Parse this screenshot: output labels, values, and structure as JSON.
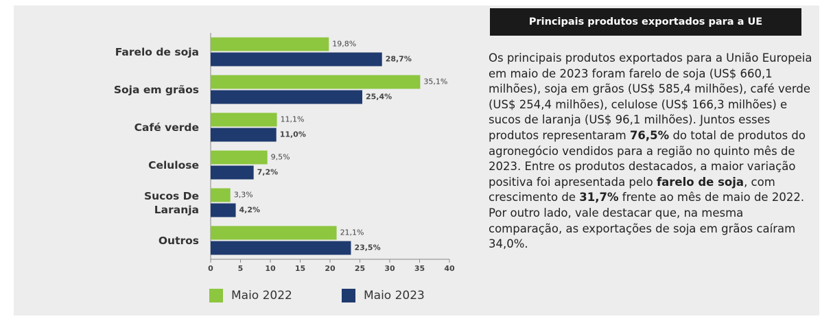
{
  "chart_data": {
    "type": "hbar",
    "categories": [
      "Farelo de soja",
      "Soja em grãos",
      "Café verde",
      "Celulose",
      "Sucos De Laranja",
      "Outros"
    ],
    "series": [
      {
        "name": "Maio 2022",
        "color": "#8dc63f",
        "values": [
          19.8,
          35.1,
          11.1,
          9.5,
          3.3,
          21.1
        ],
        "value_labels": [
          "19,8%",
          "35,1%",
          "11,1%",
          "9,5%",
          "3,3%",
          "21,1%"
        ]
      },
      {
        "name": "Maio 2023",
        "color": "#1f3a6e",
        "values": [
          28.7,
          25.4,
          11.0,
          7.2,
          4.2,
          23.5
        ],
        "value_labels": [
          "28,7%",
          "25,4%",
          "11,0%",
          "7,2%",
          "4,2%",
          "23,5%"
        ]
      }
    ],
    "xlim": [
      0,
      40
    ],
    "xticks": [
      0,
      5,
      10,
      15,
      20,
      25,
      30,
      35,
      40
    ],
    "grid": false,
    "legend": "bottom"
  },
  "panel": {
    "title": "Principais produtos exportados para a UE",
    "paragraph": [
      {
        "text": "Os principais produtos exportados para a União Europeia em maio de 2023 foram farelo de soja (US$ 660,1 milhões), soja em grãos (US$ 585,4 milhões), café verde (US$ 254,4 milhões), celulose (US$ 166,3 milhões) e sucos de laranja (US$ 96,1 milhões). Juntos esses produtos representaram ",
        "bold": false
      },
      {
        "text": "76,5%",
        "bold": true
      },
      {
        "text": " do total de produtos do agronegócio vendidos para a região no quinto mês de 2023. Entre os produtos destacados, a maior variação positiva foi apresentada pelo ",
        "bold": false
      },
      {
        "text": "farelo de soja",
        "bold": true
      },
      {
        "text": ", com crescimento de ",
        "bold": false
      },
      {
        "text": "31,7%",
        "bold": true
      },
      {
        "text": " frente ao mês de maio de 2022. Por outro lado, vale destacar que, na mesma comparação, as exportações de soja em grãos caíram 34,0%.",
        "bold": false
      }
    ]
  }
}
